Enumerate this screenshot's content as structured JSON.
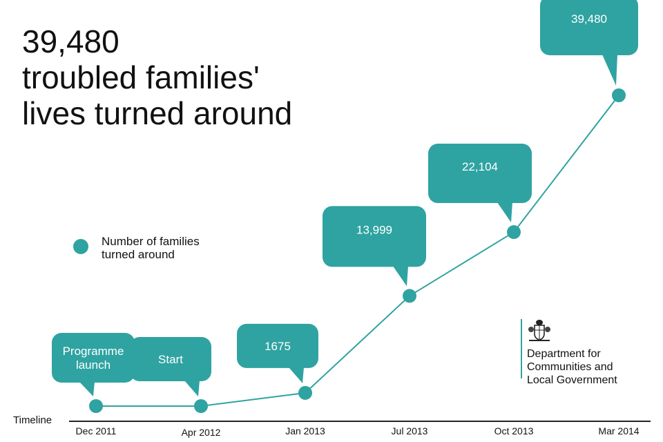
{
  "headline": {
    "line1": "39,480",
    "line2": "troubled families'",
    "line3": "lives turned around"
  },
  "colors": {
    "teal": "#2fa3a1",
    "text": "#111111",
    "axis": "#222222"
  },
  "legend": {
    "marker_icon": "circle-marker-icon",
    "label_line1": "Number of families",
    "label_line2": "turned around"
  },
  "timeline_label": "Timeline",
  "department": {
    "crest_icon": "royal-coat-of-arms-icon",
    "line1": "Department for",
    "line2": "Communities and",
    "line3": "Local Government"
  },
  "chart_data": {
    "type": "line",
    "categories": [
      "Dec 2011",
      "Apr 2012",
      "Jan 2013",
      "Jul 2013",
      "Oct 2013",
      "Mar 2014"
    ],
    "series": [
      {
        "name": "Number of families turned around",
        "values": [
          0,
          0,
          1675,
          13999,
          22104,
          39480
        ]
      }
    ],
    "callouts": [
      "Programme launch",
      "Start",
      "1675",
      "13,999",
      "22,104",
      "39,480"
    ],
    "ylim": [
      0,
      39480
    ],
    "grid": false,
    "legend_position": "left-middle"
  }
}
